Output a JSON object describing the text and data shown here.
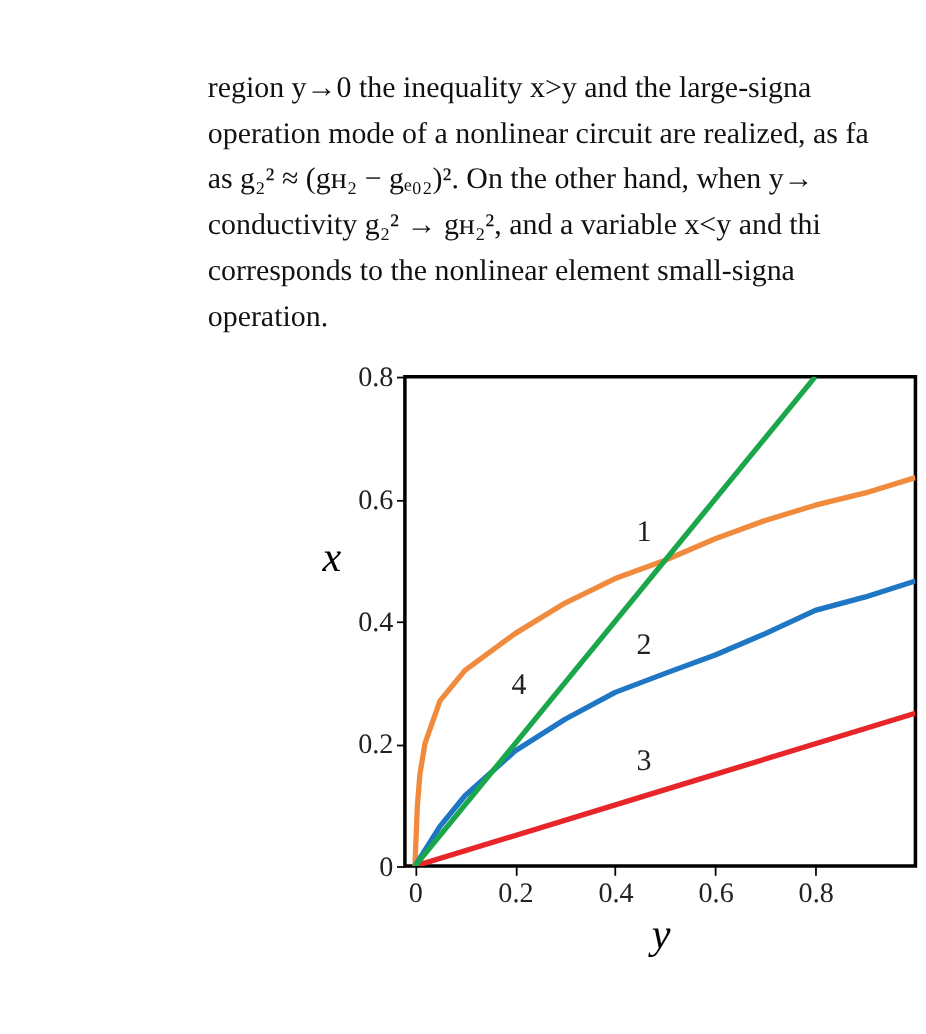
{
  "chart_data": {
    "type": "line",
    "xlabel": "y",
    "ylabel": "x",
    "xlim": [
      -0.02,
      1.0
    ],
    "ylim": [
      0,
      0.8
    ],
    "xticks": [
      0,
      0.2,
      0.4,
      0.6,
      0.8
    ],
    "yticks": [
      0,
      0.2,
      0.4,
      0.6,
      0.8
    ],
    "grid": false,
    "legend": false,
    "marker": "none",
    "line_style": "solid",
    "series": [
      {
        "name": "1",
        "color": "#f08a3c",
        "x": [
          0,
          0.005,
          0.01,
          0.02,
          0.05,
          0.1,
          0.2,
          0.3,
          0.4,
          0.5,
          0.6,
          0.7,
          0.8,
          0.9,
          1.0
        ],
        "values": [
          0,
          0.1,
          0.15,
          0.2,
          0.27,
          0.32,
          0.38,
          0.43,
          0.47,
          0.5,
          0.535,
          0.565,
          0.59,
          0.61,
          0.635
        ]
      },
      {
        "name": "2",
        "color": "#1f77c4",
        "x": [
          0,
          0.05,
          0.1,
          0.2,
          0.3,
          0.4,
          0.5,
          0.6,
          0.7,
          0.8,
          0.9,
          1.0
        ],
        "values": [
          0,
          0.065,
          0.115,
          0.188,
          0.24,
          0.284,
          0.315,
          0.345,
          0.38,
          0.418,
          0.44,
          0.466
        ]
      },
      {
        "name": "3",
        "color": "#e8262a",
        "x": [
          0,
          0.5,
          1.0
        ],
        "values": [
          0,
          0.125,
          0.25
        ]
      },
      {
        "name": "4",
        "color": "#1aa64a",
        "x": [
          0,
          0.25,
          0.8
        ],
        "values": [
          0,
          0.25,
          0.8
        ]
      }
    ],
    "annotations": [
      "region y→0 the inequality x>y and the large-signa",
      "operation mode of a nonlinear circuit are realized, as fa",
      "as g₂² ≈ (gн₂ − gₑ₀₂)². On the other hand, when y→",
      "conductivity g₂² → gн₂², and a variable x<y and thi",
      "corresponds to the nonlinear element small-signa",
      "operation."
    ]
  }
}
